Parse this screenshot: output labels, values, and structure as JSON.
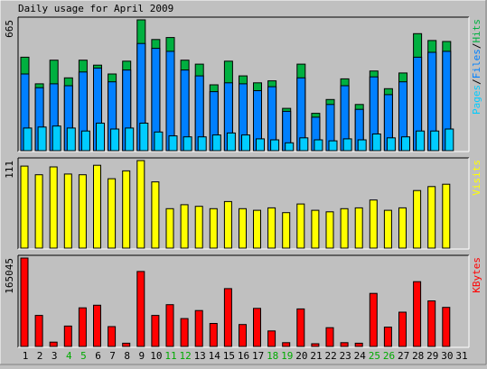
{
  "title": "Daily usage for April 2009",
  "colors": {
    "background": "#c0c0c0",
    "plot_bg": "#c0c0c0",
    "pages": "#00ccff",
    "files": "#0080ff",
    "hits": "#00b040",
    "visits": "#ffff00",
    "kbytes": "#ff0000",
    "weekend_label": "#00aa00",
    "text": "#000000"
  },
  "chart_data": [
    {
      "type": "bar",
      "panel": "hits-files-pages",
      "legend_parts": [
        "Pages",
        "/",
        "Files",
        "/",
        "Hits"
      ],
      "y_label": "665",
      "ylim": [
        0,
        665
      ],
      "categories": [
        "1",
        "2",
        "3",
        "4",
        "5",
        "6",
        "7",
        "8",
        "9",
        "10",
        "11",
        "12",
        "13",
        "14",
        "15",
        "16",
        "17",
        "18",
        "19",
        "20",
        "21",
        "22",
        "23",
        "24",
        "25",
        "26",
        "27",
        "28",
        "29",
        "30",
        "31"
      ],
      "series": [
        {
          "name": "Hits",
          "values": [
            475,
            340,
            460,
            370,
            460,
            435,
            390,
            455,
            665,
            565,
            575,
            460,
            440,
            335,
            455,
            380,
            345,
            355,
            215,
            440,
            190,
            260,
            365,
            235,
            405,
            315,
            395,
            595,
            560,
            555,
            0
          ]
        },
        {
          "name": "Files",
          "values": [
            390,
            320,
            340,
            330,
            400,
            420,
            350,
            410,
            545,
            520,
            505,
            410,
            380,
            300,
            345,
            340,
            305,
            325,
            200,
            370,
            170,
            235,
            330,
            210,
            375,
            285,
            350,
            475,
            500,
            505,
            0
          ]
        },
        {
          "name": "Pages",
          "values": [
            115,
            120,
            125,
            115,
            100,
            140,
            110,
            115,
            140,
            95,
            75,
            70,
            70,
            80,
            90,
            80,
            60,
            55,
            40,
            65,
            55,
            50,
            60,
            55,
            85,
            65,
            70,
            100,
            100,
            110,
            0
          ]
        }
      ]
    },
    {
      "type": "bar",
      "panel": "visits",
      "legend_parts": [
        "Visits"
      ],
      "y_label": "111",
      "ylim": [
        0,
        111
      ],
      "categories": [
        "1",
        "2",
        "3",
        "4",
        "5",
        "6",
        "7",
        "8",
        "9",
        "10",
        "11",
        "12",
        "13",
        "14",
        "15",
        "16",
        "17",
        "18",
        "19",
        "20",
        "21",
        "22",
        "23",
        "24",
        "25",
        "26",
        "27",
        "28",
        "29",
        "30",
        "31"
      ],
      "series": [
        {
          "name": "Visits",
          "values": [
            104,
            93,
            103,
            94,
            93,
            105,
            88,
            98,
            111,
            84,
            50,
            55,
            53,
            50,
            59,
            50,
            48,
            51,
            45,
            56,
            48,
            46,
            50,
            51,
            61,
            48,
            51,
            73,
            78,
            81,
            0
          ]
        }
      ]
    },
    {
      "type": "bar",
      "panel": "kbytes",
      "legend_parts": [
        "KBytes"
      ],
      "y_label": "165045",
      "ylim": [
        0,
        165045
      ],
      "categories": [
        "1",
        "2",
        "3",
        "4",
        "5",
        "6",
        "7",
        "8",
        "9",
        "10",
        "11",
        "12",
        "13",
        "14",
        "15",
        "16",
        "17",
        "18",
        "19",
        "20",
        "21",
        "22",
        "23",
        "24",
        "25",
        "26",
        "27",
        "28",
        "29",
        "30",
        "31"
      ],
      "series": [
        {
          "name": "KBytes",
          "values": [
            165045,
            58000,
            8000,
            38000,
            72000,
            77000,
            37000,
            6000,
            140000,
            58000,
            78000,
            52000,
            67000,
            43000,
            108000,
            41000,
            71000,
            29000,
            7000,
            70000,
            5000,
            35000,
            7000,
            6000,
            99000,
            36000,
            64000,
            121000,
            85000,
            73000,
            0
          ]
        }
      ]
    }
  ],
  "x_axis": {
    "labels": [
      "1",
      "2",
      "3",
      "4",
      "5",
      "6",
      "7",
      "8",
      "9",
      "10",
      "11",
      "12",
      "13",
      "14",
      "15",
      "16",
      "17",
      "18",
      "19",
      "20",
      "21",
      "22",
      "23",
      "24",
      "25",
      "26",
      "27",
      "28",
      "29",
      "30",
      "31"
    ],
    "weekend_days": [
      "4",
      "5",
      "11",
      "12",
      "18",
      "19",
      "25",
      "26"
    ]
  }
}
